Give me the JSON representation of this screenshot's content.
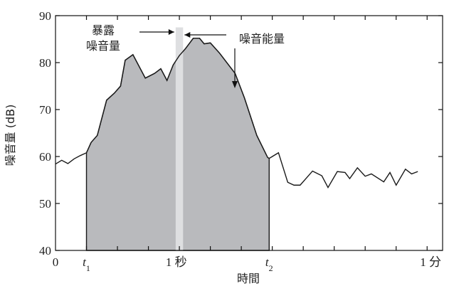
{
  "chart_data": {
    "type": "area",
    "ylabel": "噪音量 (dB)",
    "xlabel": "時間",
    "ylim": [
      40,
      90
    ],
    "y_ticks": [
      "40",
      "50",
      "60",
      "70",
      "80",
      "90"
    ],
    "x_tick_labels": [
      {
        "value": 0,
        "text": "0"
      },
      {
        "value": 0.1,
        "text": "t1"
      },
      {
        "value": 0.39,
        "text": "1 秒"
      },
      {
        "value": 0.69,
        "text": "t2"
      },
      {
        "value": 1.25,
        "text": "1 分"
      }
    ],
    "exposure_label_lines": [
      "暴露",
      "噪音量"
    ],
    "energy_label": "噪音能量",
    "exposure_window": {
      "x_start": 0.388,
      "x_end": 0.412
    },
    "shaded_interval": [
      0.1,
      0.69
    ],
    "colors": {
      "area_fill": "#b9babd",
      "exposure_band": "#dedfe1",
      "line": "#1a1a1a"
    },
    "series": [
      {
        "values": [
          [
            0.0,
            58.4
          ],
          [
            0.02,
            59.2
          ],
          [
            0.04,
            58.5
          ],
          [
            0.06,
            59.5
          ],
          [
            0.08,
            60.2
          ],
          [
            0.1,
            60.8
          ],
          [
            0.115,
            63.0
          ],
          [
            0.135,
            64.5
          ],
          [
            0.165,
            72.0
          ],
          [
            0.19,
            73.5
          ],
          [
            0.21,
            75.0
          ],
          [
            0.225,
            80.5
          ],
          [
            0.25,
            81.7
          ],
          [
            0.29,
            76.7
          ],
          [
            0.32,
            77.7
          ],
          [
            0.34,
            78.7
          ],
          [
            0.36,
            76.2
          ],
          [
            0.38,
            79.5
          ],
          [
            0.4,
            81.5
          ],
          [
            0.42,
            83.0
          ],
          [
            0.445,
            85.2
          ],
          [
            0.465,
            85.2
          ],
          [
            0.48,
            84.0
          ],
          [
            0.5,
            84.2
          ],
          [
            0.53,
            82.0
          ],
          [
            0.58,
            77.7
          ],
          [
            0.61,
            72.5
          ],
          [
            0.65,
            64.5
          ],
          [
            0.685,
            59.8
          ],
          [
            0.69,
            59.6
          ],
          [
            0.72,
            60.8
          ],
          [
            0.75,
            54.5
          ],
          [
            0.77,
            53.9
          ],
          [
            0.79,
            53.9
          ],
          [
            0.83,
            56.9
          ],
          [
            0.86,
            55.9
          ],
          [
            0.88,
            53.4
          ],
          [
            0.91,
            56.8
          ],
          [
            0.935,
            56.6
          ],
          [
            0.95,
            55.3
          ],
          [
            0.975,
            57.6
          ],
          [
            1.0,
            55.8
          ],
          [
            1.02,
            56.3
          ],
          [
            1.06,
            54.6
          ],
          [
            1.08,
            56.6
          ],
          [
            1.1,
            53.9
          ],
          [
            1.13,
            57.3
          ],
          [
            1.15,
            56.3
          ],
          [
            1.17,
            56.8
          ]
        ]
      }
    ]
  }
}
